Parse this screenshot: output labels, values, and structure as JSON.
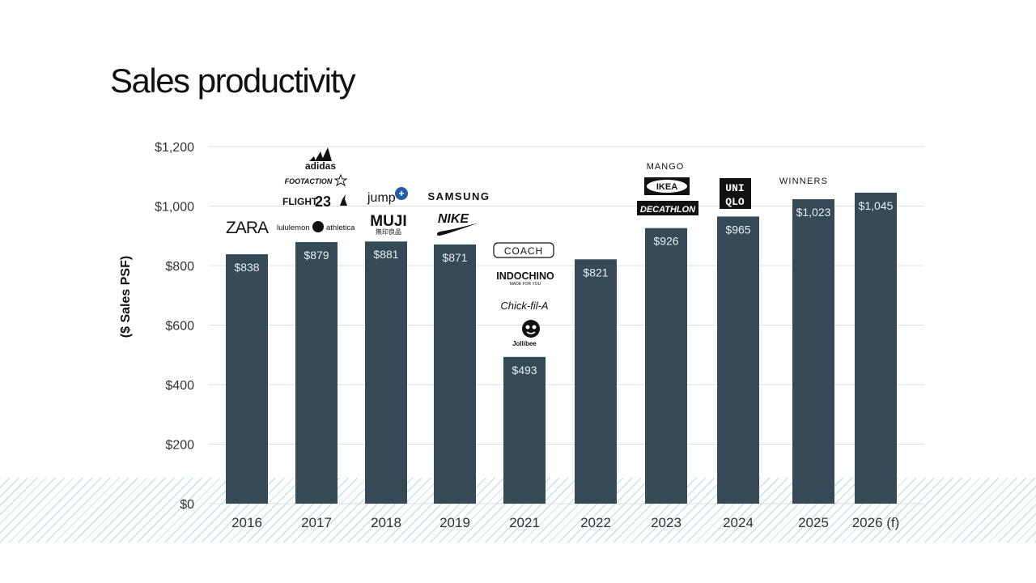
{
  "page": {
    "title": "Sales productivity"
  },
  "chart_data": {
    "type": "bar",
    "title": "Sales productivity",
    "ylabel": "($ Sales PSF)",
    "xlabel": "",
    "ylim": [
      0,
      1200
    ],
    "yticks": [
      0,
      200,
      400,
      600,
      800,
      1000,
      1200
    ],
    "ytick_labels": [
      "$0",
      "$200",
      "$400",
      "$600",
      "$800",
      "$1,000",
      "$1,200"
    ],
    "grid": true,
    "categories": [
      "2016",
      "2017",
      "2018",
      "2019",
      "2021",
      "2022",
      "2023",
      "2024",
      "2025",
      "2026 (f)"
    ],
    "values": [
      838,
      879,
      881,
      871,
      493,
      821,
      926,
      965,
      1023,
      1045
    ],
    "data_labels": [
      "$838",
      "$879",
      "$881",
      "$871",
      "$493",
      "$821",
      "$926",
      "$965",
      "$1,023",
      "$1,045"
    ],
    "bar_color": "#344a56",
    "annotations": [
      {
        "category": "2016",
        "brands": [
          "ZARA"
        ]
      },
      {
        "category": "2017",
        "brands": [
          "adidas",
          "FOOTACTION",
          "FLIGHT 23",
          "lululemon athletica"
        ]
      },
      {
        "category": "2018",
        "brands": [
          "jump+",
          "MUJI"
        ]
      },
      {
        "category": "2019",
        "brands": [
          "SAMSUNG",
          "NIKE"
        ]
      },
      {
        "category": "2021",
        "brands": [
          "COACH",
          "INDOCHINO",
          "Chick-fil-A",
          "Jollibee"
        ]
      },
      {
        "category": "2022",
        "brands": []
      },
      {
        "category": "2023",
        "brands": [
          "MANGO",
          "IKEA",
          "DECATHLON"
        ]
      },
      {
        "category": "2024",
        "brands": [
          "UNIQLO"
        ]
      },
      {
        "category": "2025",
        "brands": [
          "WINNERS"
        ]
      },
      {
        "category": "2026 (f)",
        "brands": []
      }
    ]
  }
}
